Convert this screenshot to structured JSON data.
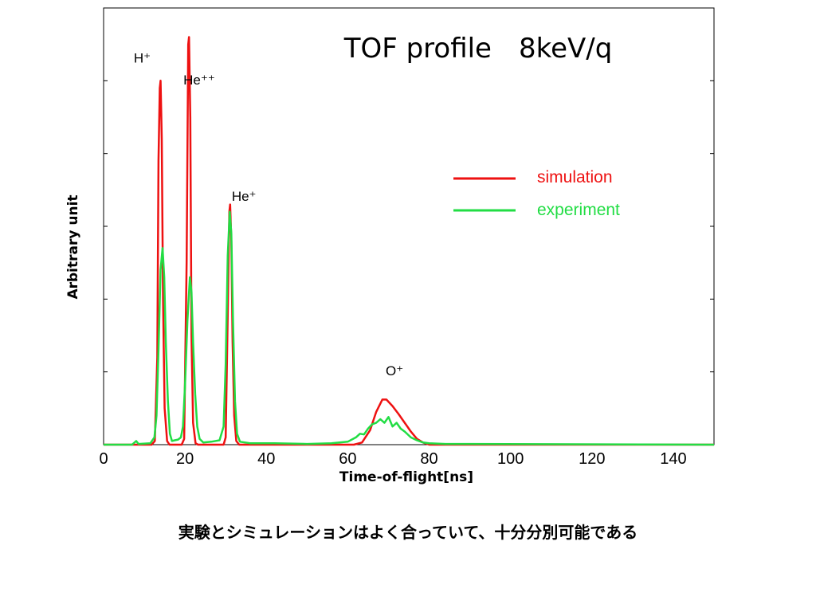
{
  "chart_data": {
    "type": "line",
    "title": "TOF profile　8keV/q",
    "xlabel": "Time-of-flight[ns]",
    "ylabel": "Arbitrary unit",
    "xlim": [
      0,
      150
    ],
    "ylim": [
      0,
      6
    ],
    "x_ticks": [
      {
        "value": 0,
        "label": "0"
      },
      {
        "value": 20,
        "label": "20"
      },
      {
        "value": 40,
        "label": "40"
      },
      {
        "value": 60,
        "label": "60"
      },
      {
        "value": 80,
        "label": "80"
      },
      {
        "value": 100,
        "label": "100"
      },
      {
        "value": 120,
        "label": "120"
      },
      {
        "value": 140,
        "label": "140"
      }
    ],
    "y_ticks": [
      1,
      2,
      3,
      4,
      5
    ],
    "y_tick_labels_shown": false,
    "grid": false,
    "legend_position": "top-right",
    "series": [
      {
        "name": "simulation",
        "color": "#ee1111",
        "points": [
          [
            0,
            0
          ],
          [
            11.8,
            0
          ],
          [
            12.6,
            0.05
          ],
          [
            13.2,
            1.2
          ],
          [
            13.5,
            3.9
          ],
          [
            13.8,
            4.9
          ],
          [
            14.0,
            5.0
          ],
          [
            14.3,
            4.2
          ],
          [
            14.6,
            2.0
          ],
          [
            15.0,
            0.5
          ],
          [
            15.6,
            0.05
          ],
          [
            16.2,
            0
          ],
          [
            19.2,
            0
          ],
          [
            19.8,
            0.08
          ],
          [
            20.4,
            2.5
          ],
          [
            20.8,
            5.5
          ],
          [
            21.0,
            5.6
          ],
          [
            21.3,
            4.5
          ],
          [
            21.6,
            1.5
          ],
          [
            22.0,
            0.3
          ],
          [
            22.6,
            0.02
          ],
          [
            23.2,
            0
          ],
          [
            29.5,
            0
          ],
          [
            30.0,
            0.1
          ],
          [
            30.5,
            1.8
          ],
          [
            30.9,
            3.2
          ],
          [
            31.1,
            3.3
          ],
          [
            31.4,
            2.8
          ],
          [
            31.7,
            1.4
          ],
          [
            32.1,
            0.4
          ],
          [
            32.6,
            0.05
          ],
          [
            33.3,
            0
          ],
          [
            61.5,
            0
          ],
          [
            63.5,
            0.03
          ],
          [
            65.5,
            0.2
          ],
          [
            67.0,
            0.45
          ],
          [
            68.5,
            0.62
          ],
          [
            69.5,
            0.62
          ],
          [
            71.0,
            0.53
          ],
          [
            72.5,
            0.42
          ],
          [
            74.0,
            0.3
          ],
          [
            75.5,
            0.18
          ],
          [
            77.0,
            0.08
          ],
          [
            78.5,
            0.03
          ],
          [
            80.0,
            0
          ],
          [
            150,
            0
          ]
        ]
      },
      {
        "name": "experiment",
        "color": "#22dd44",
        "points": [
          [
            0,
            0
          ],
          [
            7.0,
            0
          ],
          [
            8.0,
            0.05
          ],
          [
            8.6,
            0.01
          ],
          [
            11.5,
            0.02
          ],
          [
            12.5,
            0.1
          ],
          [
            13.0,
            0.4
          ],
          [
            13.5,
            1.3
          ],
          [
            14.0,
            2.4
          ],
          [
            14.5,
            2.7
          ],
          [
            14.9,
            2.3
          ],
          [
            15.3,
            1.4
          ],
          [
            15.8,
            0.6
          ],
          [
            16.3,
            0.15
          ],
          [
            16.8,
            0.05
          ],
          [
            17.5,
            0.06
          ],
          [
            18.3,
            0.07
          ],
          [
            19.0,
            0.1
          ],
          [
            19.5,
            0.25
          ],
          [
            20.0,
            0.8
          ],
          [
            20.6,
            1.7
          ],
          [
            21.2,
            2.3
          ],
          [
            21.6,
            2.1
          ],
          [
            22.0,
            1.4
          ],
          [
            22.5,
            0.7
          ],
          [
            23.0,
            0.25
          ],
          [
            23.6,
            0.08
          ],
          [
            24.5,
            0.03
          ],
          [
            26.5,
            0.04
          ],
          [
            28.5,
            0.06
          ],
          [
            29.5,
            0.25
          ],
          [
            30.0,
            1.1
          ],
          [
            30.5,
            2.6
          ],
          [
            31.0,
            3.2
          ],
          [
            31.4,
            2.9
          ],
          [
            31.8,
            1.7
          ],
          [
            32.3,
            0.6
          ],
          [
            32.8,
            0.15
          ],
          [
            33.5,
            0.04
          ],
          [
            36.0,
            0.02
          ],
          [
            42.0,
            0.02
          ],
          [
            50.0,
            0.01
          ],
          [
            56.0,
            0.02
          ],
          [
            60.0,
            0.04
          ],
          [
            62.0,
            0.1
          ],
          [
            63.0,
            0.15
          ],
          [
            64.0,
            0.14
          ],
          [
            65.0,
            0.22
          ],
          [
            66.0,
            0.28
          ],
          [
            67.0,
            0.3
          ],
          [
            68.0,
            0.35
          ],
          [
            69.0,
            0.3
          ],
          [
            70.0,
            0.38
          ],
          [
            71.0,
            0.25
          ],
          [
            72.0,
            0.3
          ],
          [
            73.0,
            0.22
          ],
          [
            74.0,
            0.18
          ],
          [
            75.5,
            0.1
          ],
          [
            77.0,
            0.06
          ],
          [
            78.5,
            0.03
          ],
          [
            80.0,
            0.02
          ],
          [
            84.0,
            0.01
          ],
          [
            90.0,
            0.01
          ],
          [
            150,
            0
          ]
        ]
      }
    ],
    "annotations": [
      {
        "text": "H⁺",
        "x": 9.5,
        "y": 5.25
      },
      {
        "text": "He⁺⁺",
        "x": 23.5,
        "y": 4.95
      },
      {
        "text": "He⁺",
        "x": 34.5,
        "y": 3.35
      },
      {
        "text": "O⁺",
        "x": 71.5,
        "y": 0.95
      }
    ]
  },
  "caption": "実験とシミュレーションはよく合っていて、十分分別可能である"
}
